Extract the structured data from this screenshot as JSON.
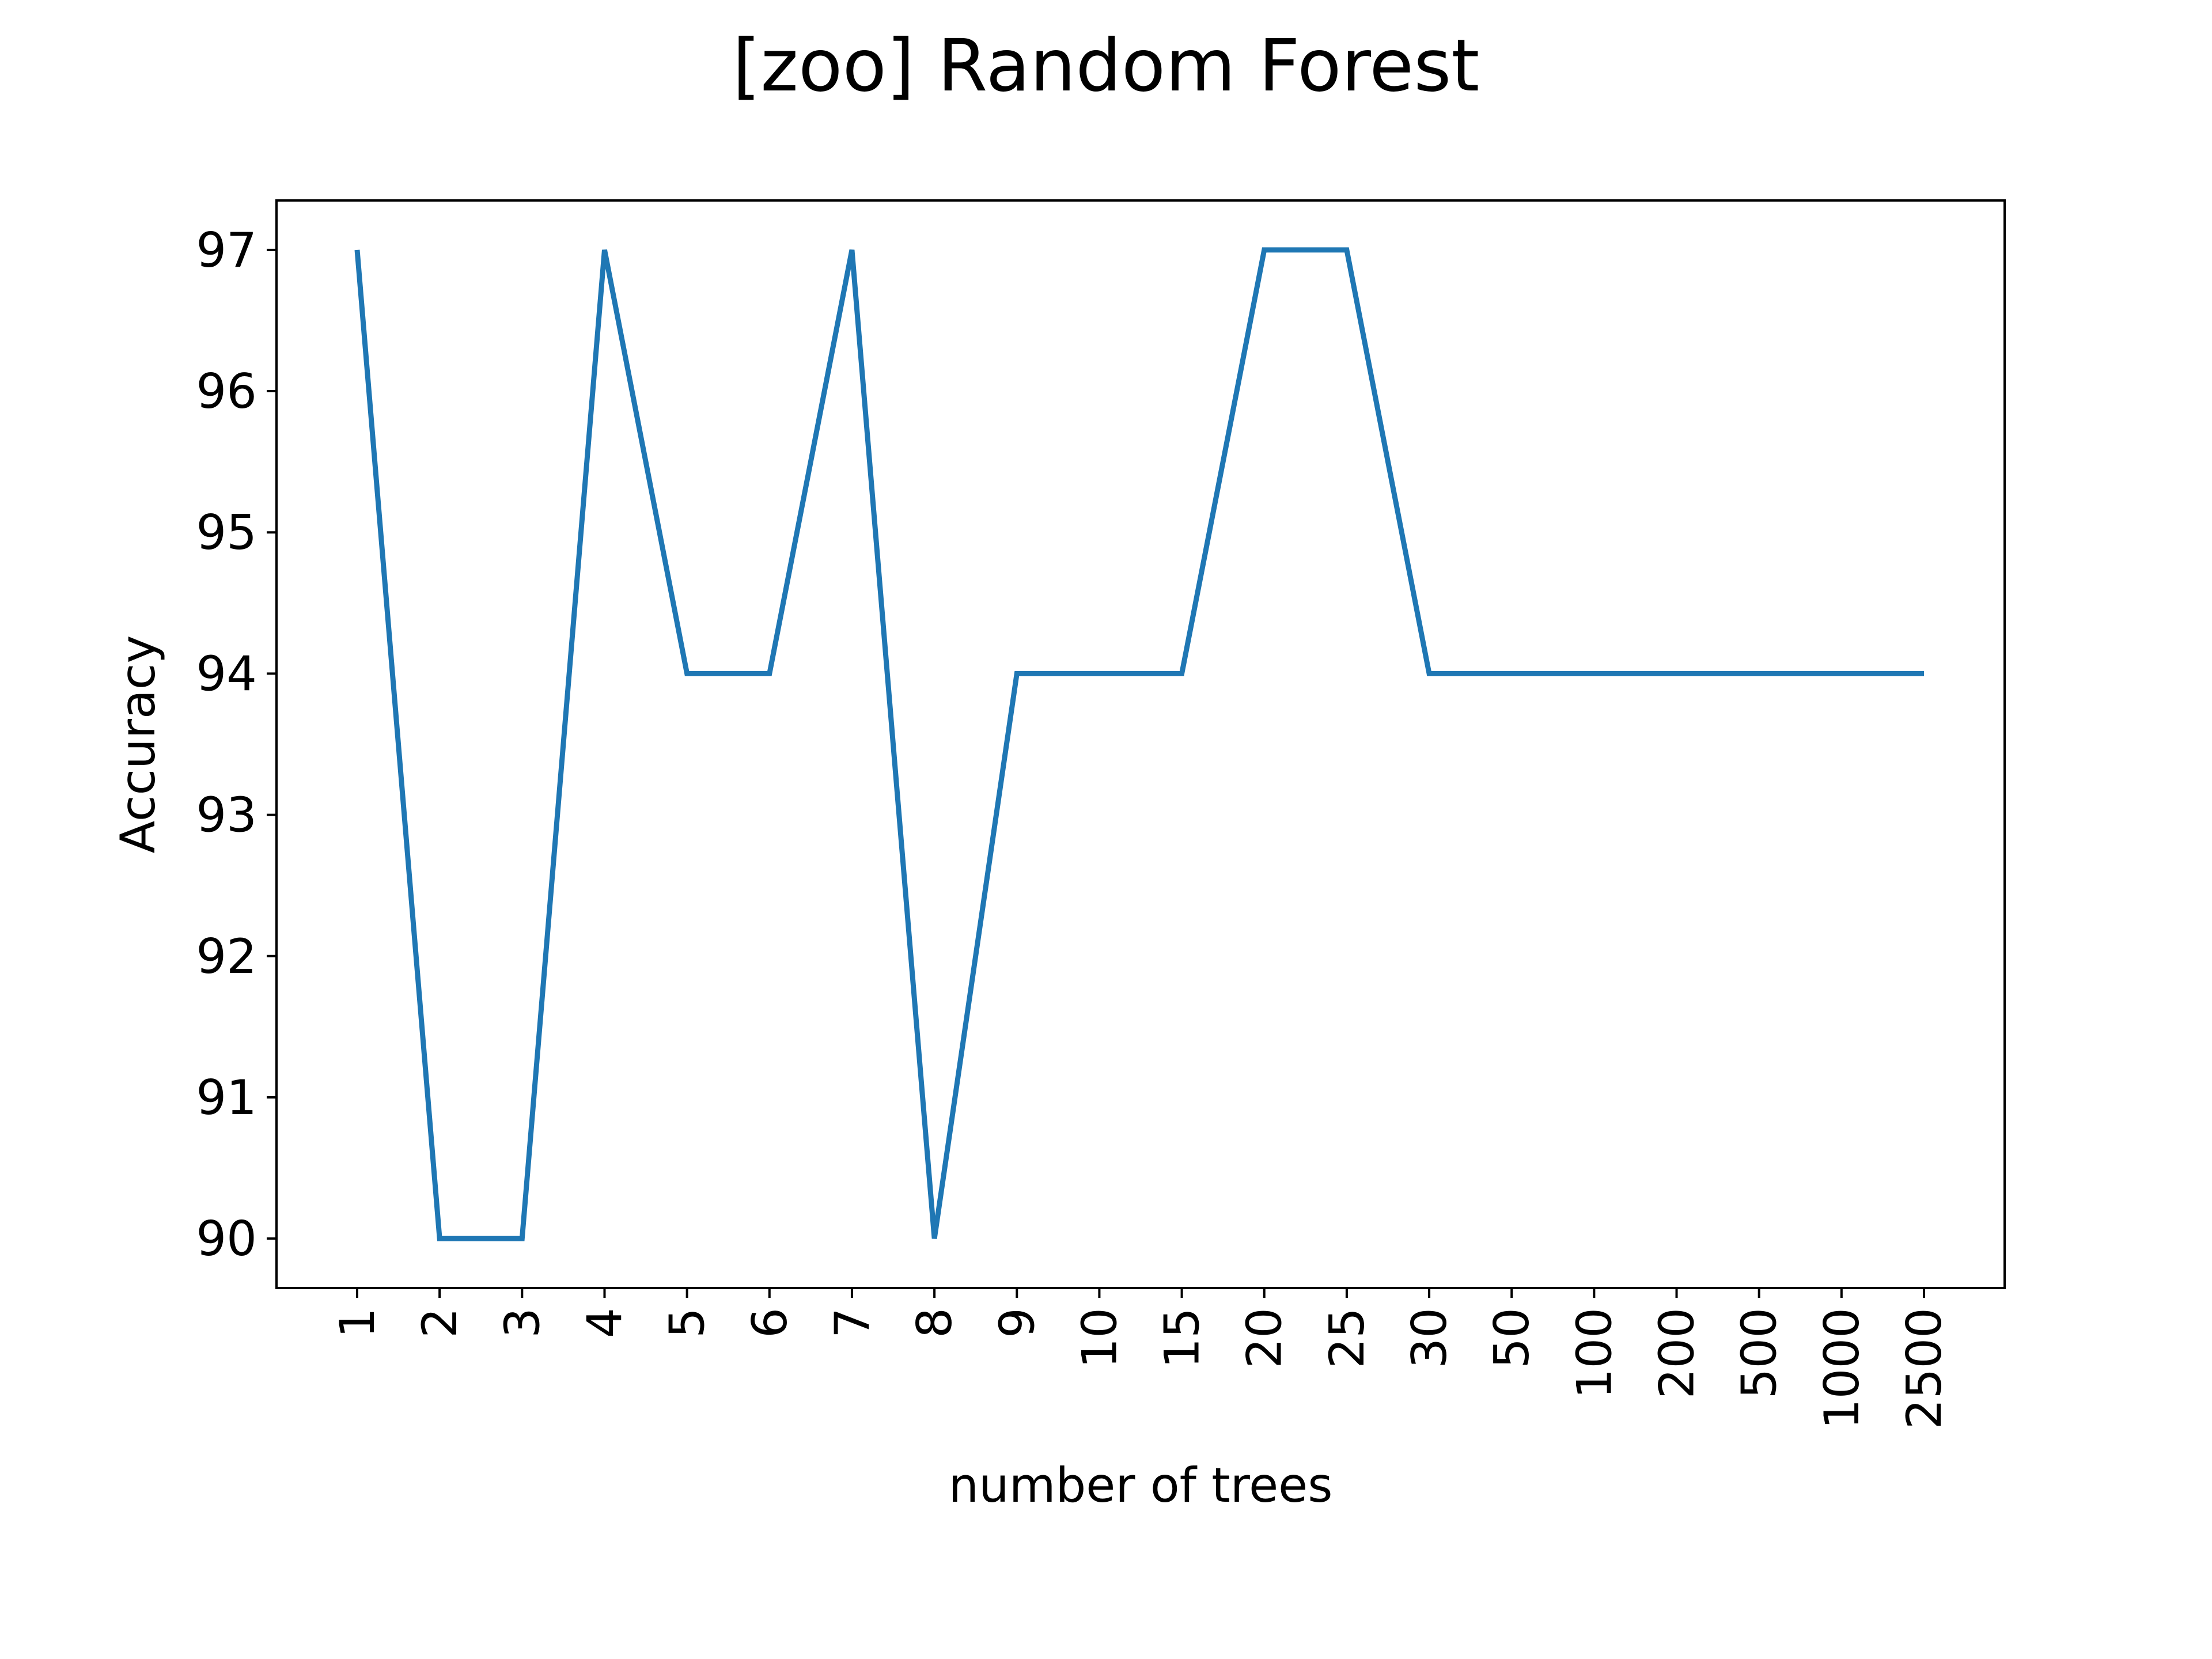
{
  "chart_data": {
    "type": "line",
    "title": "[zoo] Random Forest",
    "xlabel": "number of trees",
    "ylabel": "Accuracy",
    "categories": [
      "1",
      "2",
      "3",
      "4",
      "5",
      "6",
      "7",
      "8",
      "9",
      "10",
      "15",
      "20",
      "25",
      "30",
      "50",
      "100",
      "200",
      "500",
      "1000",
      "2500"
    ],
    "series": [
      {
        "color": "#1f77b4",
        "values": [
          97,
          90,
          90,
          97,
          94,
          94,
          97,
          90,
          94,
          94,
          94,
          97,
          97,
          94,
          94,
          94,
          94,
          94,
          94,
          94
        ]
      }
    ],
    "yticks": [
      90,
      91,
      92,
      93,
      94,
      95,
      96,
      97
    ],
    "ylim": [
      89.65,
      97.35
    ],
    "grid": false,
    "legend": "none"
  }
}
